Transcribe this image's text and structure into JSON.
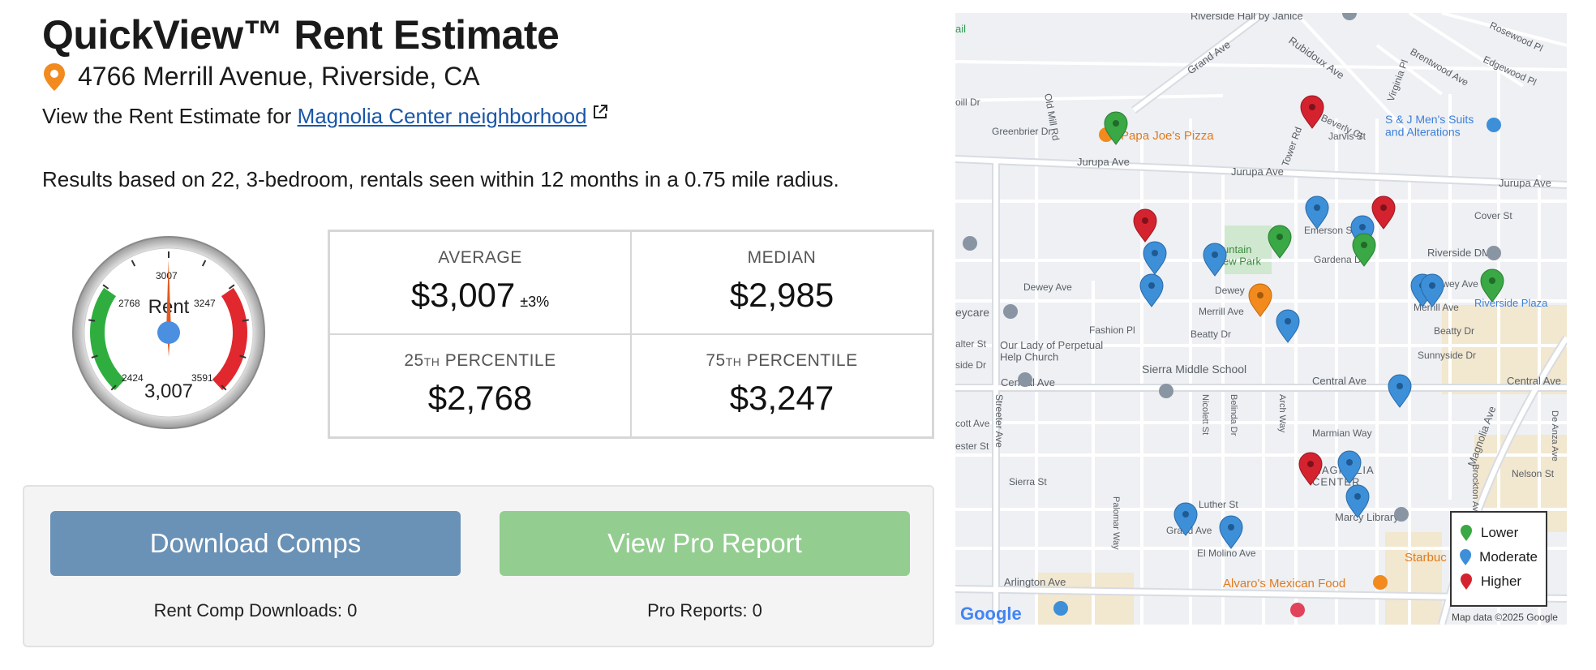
{
  "header": {
    "title": "QuickView™ Rent Estimate",
    "address": "4766 Merrill Avenue, Riverside, CA",
    "view_prefix": "View the Rent Estimate for ",
    "neighborhood_link": "Magnolia Center neighborhood",
    "results_text": "Results based on 22, 3-bedroom, rentals seen within 12 months in a 0.75 mile radius."
  },
  "gauge": {
    "label": "Rent",
    "value": 3007,
    "value_text": "3,007",
    "min": 2424,
    "max": 3591,
    "ticks": {
      "low_outer": "2424",
      "low_inner": "2768",
      "mid": "3007",
      "high_inner": "3247",
      "high_outer": "3591"
    },
    "colors": {
      "low": "#2fae3f",
      "high": "#e0282e",
      "needle": "#e05a1e",
      "hub": "#4a8fe0"
    }
  },
  "stats": {
    "average_label": "AVERAGE",
    "average_value": "$3,007",
    "average_pm": "±3%",
    "median_label": "MEDIAN",
    "median_value": "$2,985",
    "p25_num": "25",
    "p25_sup": "TH",
    "p25_rest": " PERCENTILE",
    "p25_value": "$2,768",
    "p75_num": "75",
    "p75_sup": "TH",
    "p75_rest": " PERCENTILE",
    "p75_value": "$3,247"
  },
  "actions": {
    "download_label": "Download Comps",
    "pro_label": "View Pro Report",
    "download_count": "Rent Comp Downloads: 0",
    "pro_count": "Pro Reports: 0",
    "download_color": "#6a91b6",
    "pro_color": "#93cd90"
  },
  "map": {
    "streets": {
      "riverside_hall": "Riverside Hall by Janice",
      "grand_ave_top": "Grand Ave",
      "rubidoux": "Rubidoux Ave",
      "rosewood": "Rosewood Pl",
      "brentwood": "Brentwood Ave",
      "edgewood": "Edgewood Pl",
      "virginia": "Virginia Pl",
      "ail": "ail",
      "oill_dr": "oill Dr",
      "old_mill": "Old Mill Rd",
      "greenbrier": "Greenbrier Dr",
      "papa_joes": "Papa Joe's Pizza",
      "beverly": "Beverly Ct",
      "jarvis": "Jarvis St",
      "tower_rd": "Tower Rd",
      "sj_mens": "S & J Men's Suits\nand Alterations",
      "jurupa_left": "Jurupa Ave",
      "jurupa_mid": "Jurupa Ave",
      "jurupa_right": "Jurupa Ave",
      "cover": "Cover St",
      "emerson": "Emerson St",
      "fountain_park": "untain\new Park",
      "gardena": "Gardena Dr",
      "riverside_dmv": "Riverside DMV",
      "dewey_left": "Dewey Ave",
      "dewey_mid": "Dewey",
      "dewey_right": "Dewey Ave",
      "riverside_plaza": "Riverside Plaza",
      "merrill": "Merrill Ave",
      "merrill_right": "Merrill Ave",
      "eycare": "eycare",
      "our_lady": "Our Lady of Perpetual\nHelp Church",
      "fashion": "Fashion Pl",
      "beatty": "Beatty Dr",
      "beatty_right": "Beatty Dr",
      "walter": "alter St",
      "side_dr": "side Dr",
      "sierra_middle": "Sierra Middle School",
      "sunnyside": "Sunnyside Dr",
      "central_left": "Central Ave",
      "central_mid": "Central Ave",
      "central_right": "Central Ave",
      "streeter": "Streeter Ave",
      "nicolett": "Nicolett St",
      "belinda": "Belinda Dr",
      "arch_way": "Arch Way",
      "magnolia_ave": "Magnolia Ave",
      "de_anza": "De Anza Ave",
      "scott": "cott Ave",
      "chester": "ester St",
      "marmian": "Marmian Way",
      "magnolia_center": "MAGNOLIA\nCENTER",
      "nelson": "Nelson St",
      "sierra_st": "Sierra St",
      "luther": "Luther St",
      "marcy": "Marcy Library",
      "brockton": "Brockton Ave",
      "palomar": "Palomar Way",
      "grand_ave_bottom": "Grand Ave",
      "el_molino": "El Molino Ave",
      "arlington": "Arlington Ave",
      "alvaros": "Alvaro's Mexican Food",
      "starbucks": "Starbuc"
    },
    "legend": {
      "lower": "Lower",
      "moderate": "Moderate",
      "higher": "Higher"
    },
    "legend_colors": {
      "lower": "#39a845",
      "moderate": "#3d8fd8",
      "higher": "#d4232f",
      "subject": "#f28a1e"
    },
    "credit": "Map data ©2025 Google",
    "google": "Google"
  }
}
